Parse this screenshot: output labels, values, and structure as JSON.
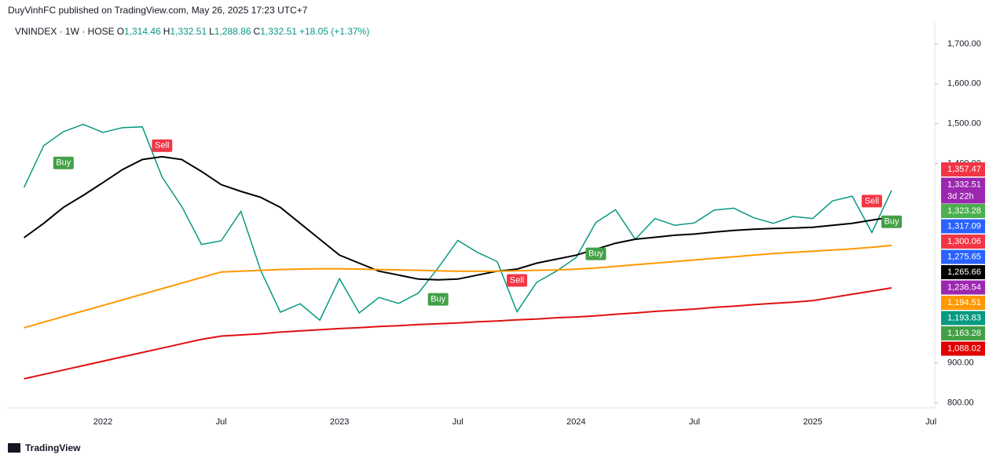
{
  "header": {
    "publisher": "DuyVinhFC published on TradingView.com, May 26, 2025 17:23 UTC+7",
    "symbol": "VNINDEX · 1W · HOSE",
    "ohlc": [
      {
        "key": "O",
        "value": "1,314.46"
      },
      {
        "key": "H",
        "value": "1,332.51"
      },
      {
        "key": "L",
        "value": "1,288.86"
      },
      {
        "key": "C",
        "value": "1,332.51"
      }
    ],
    "change": "+18.05 (+1.37%)"
  },
  "footer": "TradingView",
  "chart_data": {
    "type": "line",
    "categories": [
      null,
      null,
      null,
      null,
      "2022",
      null,
      null,
      null,
      null,
      null,
      "Jul",
      null,
      null,
      null,
      null,
      null,
      "2023",
      null,
      null,
      null,
      null,
      null,
      "Jul",
      null,
      null,
      null,
      null,
      null,
      "2024",
      null,
      null,
      null,
      null,
      null,
      "Jul",
      null,
      null,
      null,
      null,
      null,
      "2025",
      null,
      null,
      null,
      null,
      null,
      "Jul"
    ],
    "series": [
      {
        "color": "#089981",
        "values": [
          1340,
          1445,
          1480,
          1498,
          1478,
          1490,
          1492,
          1366,
          1292,
          1197,
          1206,
          1280,
          1132,
          1027,
          1048,
          1007,
          1111,
          1025,
          1064,
          1049,
          1075,
          1138,
          1207,
          1177,
          1154,
          1028,
          1102,
          1130,
          1164,
          1252,
          1284,
          1210,
          1262,
          1245,
          1251,
          1283,
          1288,
          1264,
          1250,
          1267,
          1262,
          1306,
          1318,
          1227,
          1332.51,
          null,
          null
        ]
      },
      {
        "color": "#000000",
        "values": [
          1214,
          1250,
          1290,
          1320,
          1352,
          1385,
          1410,
          1417,
          1410,
          1380,
          1347,
          1330,
          1315,
          1290,
          1250,
          1210,
          1170,
          1150,
          1130,
          1120,
          1110,
          1108,
          1110,
          1120,
          1130,
          1135,
          1150,
          1160,
          1170,
          1185,
          1200,
          1210,
          1215,
          1220,
          1223,
          1228,
          1232,
          1235,
          1237,
          1238,
          1240,
          1245,
          1250,
          1258,
          1265.66,
          null,
          null
        ]
      },
      {
        "color": "#ff9800",
        "values": [
          988,
          1002,
          1016,
          1030,
          1044,
          1058,
          1072,
          1086,
          1100,
          1114,
          1128,
          1130,
          1132,
          1134,
          1135,
          1136,
          1136,
          1135,
          1134,
          1133,
          1132,
          1131,
          1130,
          1130,
          1130,
          1131,
          1132,
          1133,
          1135,
          1138,
          1142,
          1146,
          1150,
          1154,
          1158,
          1162,
          1166,
          1170,
          1174,
          1177,
          1180,
          1183,
          1186,
          1190,
          1194.51,
          null,
          null
        ]
      },
      {
        "color": "#e01010",
        "values": [
          860,
          871,
          882,
          893,
          904,
          915,
          926,
          937,
          948,
          959,
          967,
          970,
          973,
          977,
          980,
          983,
          986,
          988,
          991,
          993,
          996,
          998,
          1000,
          1003,
          1005,
          1008,
          1010,
          1013,
          1015,
          1018,
          1022,
          1025,
          1029,
          1032,
          1035,
          1039,
          1042,
          1046,
          1049,
          1052,
          1056,
          1064,
          1072,
          1080,
          1088.02,
          null,
          null
        ]
      }
    ],
    "signals": [
      null,
      null,
      "Buy",
      null,
      null,
      null,
      null,
      "Sell",
      null,
      null,
      null,
      null,
      null,
      null,
      null,
      null,
      null,
      null,
      null,
      null,
      null,
      "Buy",
      null,
      null,
      null,
      "Sell",
      null,
      null,
      null,
      "Buy",
      null,
      null,
      null,
      null,
      null,
      null,
      null,
      null,
      null,
      null,
      null,
      null,
      null,
      "Sell",
      "Buy",
      null,
      null
    ],
    "ylim": [
      787,
      1755
    ],
    "yticks": [
      {
        "value": 800,
        "label": "800.00"
      },
      {
        "value": 900,
        "label": "900.00"
      },
      {
        "value": 1400,
        "label": "1,400.00"
      },
      {
        "value": 1500,
        "label": "1,500.00"
      },
      {
        "value": 1600,
        "label": "1,600.00"
      },
      {
        "value": 1700,
        "label": "1,700.00"
      }
    ],
    "price_labels": [
      {
        "value": 1357.47,
        "label": "1,357.47",
        "color": "#f23645"
      },
      {
        "value": 1332.51,
        "label": "1,332.51",
        "color": "#9c27b0",
        "note": "3d 22h"
      },
      {
        "value": 1323.28,
        "label": "1,323.28",
        "color": "#4caf50"
      },
      {
        "value": 1317.09,
        "label": "1,317.09",
        "color": "#2962ff"
      },
      {
        "value": 1300.06,
        "label": "1,300.06",
        "color": "#f23645"
      },
      {
        "value": 1275.65,
        "label": "1,275.65",
        "color": "#2962ff"
      },
      {
        "value": 1265.66,
        "label": "1,265.66",
        "color": "#000000"
      },
      {
        "value": 1236.54,
        "label": "1,236.54",
        "color": "#9c27b0"
      },
      {
        "value": 1194.51,
        "label": "1,194.51",
        "color": "#ff9800"
      },
      {
        "value": 1193.83,
        "label": "1,193.83",
        "color": "#089981"
      },
      {
        "value": 1163.28,
        "label": "1,163.28",
        "color": "#43a047"
      },
      {
        "value": 1088.02,
        "label": "1,088.02",
        "color": "#e00000"
      }
    ]
  }
}
